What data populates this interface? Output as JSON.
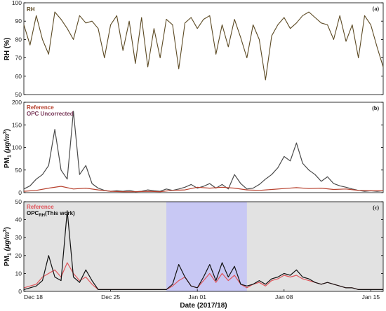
{
  "chart_data": [
    {
      "type": "line",
      "panel_tag": "(a)",
      "legend": [
        "RH"
      ],
      "ylabel": "RH (%)",
      "ylim": [
        50,
        100
      ],
      "yticks": [
        50,
        60,
        70,
        80,
        90,
        100
      ],
      "xlim": [
        0,
        29
      ],
      "series": [
        {
          "name": "RH",
          "color": "#5c4a24",
          "x": [
            0,
            0.5,
            1,
            1.5,
            2,
            2.5,
            3,
            3.5,
            4,
            4.5,
            5,
            5.5,
            6,
            6.5,
            7,
            7.5,
            8,
            8.5,
            9,
            9.5,
            10,
            10.5,
            11,
            11.5,
            12,
            12.5,
            13,
            13.5,
            14,
            14.5,
            15,
            15.5,
            16,
            16.5,
            17,
            17.5,
            18,
            18.5,
            19,
            19.5,
            20,
            20.5,
            21,
            21.5,
            22,
            22.5,
            23,
            23.5,
            24,
            24.5,
            25,
            25.5,
            26,
            26.5,
            27,
            27.5,
            28,
            28.5,
            29
          ],
          "y": [
            88,
            77,
            93,
            80,
            72,
            95,
            91,
            86,
            80,
            93,
            89,
            90,
            86,
            70,
            88,
            93,
            74,
            90,
            67,
            92,
            65,
            86,
            70,
            91,
            88,
            64,
            89,
            92,
            86,
            91,
            93,
            72,
            88,
            76,
            91,
            81,
            70,
            88,
            80,
            58,
            82,
            88,
            92,
            86,
            89,
            93,
            95,
            92,
            89,
            88,
            80,
            93,
            79,
            88,
            70,
            93,
            88,
            76,
            65
          ]
        }
      ]
    },
    {
      "type": "line",
      "panel_tag": "(b)",
      "ylabel": "PM1 (μg/m³)",
      "ylim": [
        0,
        200
      ],
      "yticks": [
        0,
        50,
        100,
        150,
        200
      ],
      "xlim": [
        0,
        29
      ],
      "series": [
        {
          "name": "OPC Uncorrected",
          "color": "#4a4a4a",
          "x": [
            0,
            0.5,
            1,
            1.5,
            2,
            2.5,
            3,
            3.5,
            4,
            4.5,
            5,
            5.5,
            6,
            6.5,
            7,
            7.5,
            8,
            8.5,
            9,
            9.5,
            10,
            10.5,
            11,
            11.5,
            12,
            12.5,
            13,
            13.5,
            14,
            14.5,
            15,
            15.5,
            16,
            16.5,
            17,
            17.5,
            18,
            18.5,
            19,
            19.5,
            20,
            20.5,
            21,
            21.5,
            22,
            22.5,
            23,
            23.5,
            24,
            24.5,
            25,
            25.5,
            26,
            26.5,
            27,
            27.5,
            28,
            28.5,
            29
          ],
          "y": [
            8,
            15,
            30,
            40,
            60,
            140,
            50,
            30,
            180,
            40,
            60,
            20,
            10,
            5,
            3,
            4,
            3,
            5,
            2,
            3,
            6,
            4,
            3,
            8,
            5,
            8,
            12,
            18,
            10,
            14,
            20,
            10,
            18,
            8,
            40,
            20,
            8,
            10,
            18,
            30,
            40,
            55,
            80,
            70,
            110,
            65,
            50,
            40,
            25,
            35,
            20,
            15,
            12,
            8,
            5,
            3,
            4,
            3,
            4
          ]
        },
        {
          "name": "Reference",
          "color": "#b7412e",
          "x": [
            0,
            1,
            2,
            3,
            4,
            5,
            6,
            7,
            8,
            9,
            10,
            11,
            12,
            13,
            14,
            15,
            16,
            17,
            18,
            19,
            20,
            21,
            22,
            23,
            24,
            25,
            26,
            27,
            28,
            29
          ],
          "y": [
            3,
            5,
            10,
            14,
            8,
            10,
            6,
            3,
            2,
            2,
            3,
            2,
            5,
            6,
            12,
            10,
            12,
            10,
            6,
            5,
            7,
            9,
            11,
            9,
            10,
            7,
            8,
            5,
            4,
            4
          ]
        }
      ]
    },
    {
      "type": "line",
      "panel_tag": "(c)",
      "ylabel": "PM1 (μg/m³)",
      "ylim": [
        0,
        50
      ],
      "yticks": [
        0,
        10,
        20,
        30,
        40,
        50
      ],
      "xlim": [
        0,
        29
      ],
      "xlabel": "Date (2017/18)",
      "xtick_positions": [
        0,
        7,
        14,
        21,
        28
      ],
      "xticks": [
        "Dec 18",
        "Dec 25",
        "Jan 01",
        "Jan 08",
        "Jan 15"
      ],
      "highlight_span": [
        11.5,
        18
      ],
      "series": [
        {
          "name": "Reference",
          "color": "#e0565c",
          "x": [
            0,
            0.5,
            1,
            1.5,
            2,
            2.5,
            3,
            3.5,
            4,
            4.5,
            5,
            5.5,
            6,
            6.5,
            7,
            7.5,
            8,
            8.5,
            9,
            9.5,
            10,
            10.5,
            11,
            11.5,
            12,
            12.5,
            13,
            13.5,
            14,
            14.5,
            15,
            15.5,
            16,
            16.5,
            17,
            17.5,
            18,
            18.5,
            19,
            19.5,
            20,
            20.5,
            21,
            21.5,
            22,
            22.5,
            23,
            23.5,
            24,
            24.5,
            25,
            25.5,
            26,
            26.5,
            27,
            27.5,
            28,
            28.5,
            29
          ],
          "y": [
            2,
            3,
            4,
            8,
            10,
            12,
            8,
            16,
            10,
            6,
            8,
            4,
            1,
            1,
            1,
            1,
            1,
            1,
            1,
            1,
            1,
            1,
            1,
            1,
            3,
            6,
            8,
            3,
            2,
            6,
            10,
            5,
            10,
            6,
            9,
            4,
            2,
            4,
            5,
            3,
            6,
            7,
            9,
            8,
            9,
            7,
            6,
            5,
            4,
            5,
            4,
            3,
            2,
            2,
            1,
            1,
            1,
            1,
            1
          ]
        },
        {
          "name": "OPC_RH (This work)",
          "color": "#111111",
          "x": [
            0,
            0.5,
            1,
            1.5,
            2,
            2.5,
            3,
            3.5,
            4,
            4.5,
            5,
            5.5,
            6,
            6.5,
            7,
            7.5,
            8,
            8.5,
            9,
            9.5,
            10,
            10.5,
            11,
            11.5,
            12,
            12.5,
            13,
            13.5,
            14,
            14.5,
            15,
            15.5,
            16,
            16.5,
            17,
            17.5,
            18,
            18.5,
            19,
            19.5,
            20,
            20.5,
            21,
            21.5,
            22,
            22.5,
            23,
            23.5,
            24,
            24.5,
            25,
            25.5,
            26,
            26.5,
            27,
            27.5,
            28,
            28.5,
            29
          ],
          "y": [
            1,
            2,
            3,
            6,
            20,
            8,
            6,
            45,
            8,
            5,
            12,
            6,
            1,
            1,
            1,
            1,
            1,
            1,
            1,
            1,
            1,
            1,
            1,
            1,
            4,
            15,
            8,
            3,
            2,
            8,
            15,
            6,
            16,
            8,
            14,
            4,
            3,
            4,
            6,
            4,
            7,
            8,
            10,
            9,
            12,
            8,
            7,
            5,
            4,
            5,
            4,
            3,
            2,
            2,
            1,
            1,
            1,
            1,
            1
          ]
        }
      ]
    }
  ],
  "labels": {
    "panel_a_ylabel": "RH (%)",
    "pm_unit": "(μg/m",
    "pm_unit_sup": "3",
    "pm_close": ")",
    "pm_base": "PM",
    "pm_sub": "1",
    "legend_a_rh": "RH",
    "legend_b_ref": "Reference",
    "legend_b_opc": "OPC Uncorrected",
    "legend_c_ref": "Reference",
    "legend_c_opc_base": "OPC",
    "legend_c_opc_sub": "RH",
    "legend_c_opc_tail": "(This work)"
  },
  "colors": {
    "highlight": "#c8c8f4",
    "panel_c_background": "#e2e2e2"
  }
}
